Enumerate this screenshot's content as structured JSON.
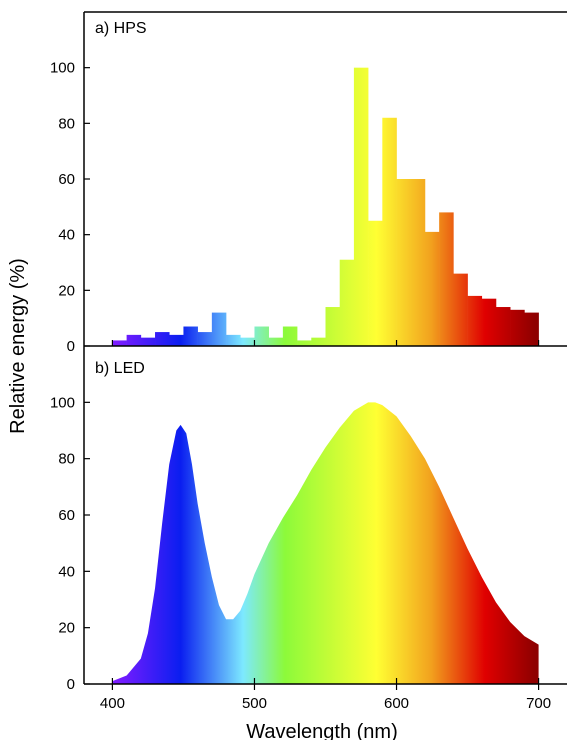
{
  "chart_data": [
    {
      "type": "bar",
      "panel_label": "a) HPS",
      "xlim": [
        380,
        720
      ],
      "ylim": [
        0,
        120
      ],
      "yticks": [
        0,
        20,
        40,
        60,
        80,
        100
      ],
      "bin_width": 10,
      "x": [
        400,
        410,
        420,
        430,
        440,
        450,
        460,
        470,
        480,
        490,
        500,
        510,
        520,
        530,
        540,
        550,
        560,
        570,
        580,
        590,
        600,
        610,
        620,
        630,
        640,
        650,
        660,
        670,
        680,
        690
      ],
      "values": [
        2,
        4,
        3,
        5,
        4,
        7,
        5,
        12,
        4,
        3,
        7,
        3,
        7,
        2,
        3,
        14,
        31,
        100,
        45,
        82,
        60,
        60,
        41,
        48,
        26,
        18,
        17,
        14,
        13,
        12
      ]
    },
    {
      "type": "area",
      "panel_label": "b) LED",
      "xlim": [
        380,
        720
      ],
      "ylim": [
        0,
        120
      ],
      "yticks": [
        0,
        20,
        40,
        60,
        80,
        100
      ],
      "x": [
        400,
        410,
        420,
        425,
        430,
        435,
        440,
        445,
        448,
        452,
        456,
        460,
        465,
        470,
        475,
        480,
        485,
        490,
        495,
        500,
        510,
        520,
        530,
        540,
        550,
        560,
        570,
        580,
        585,
        590,
        600,
        610,
        620,
        630,
        640,
        650,
        660,
        670,
        680,
        690,
        700
      ],
      "values": [
        1,
        3,
        9,
        18,
        34,
        57,
        78,
        90,
        92,
        89,
        78,
        64,
        50,
        38,
        28,
        23,
        23,
        26,
        32,
        39,
        50,
        59,
        67,
        76,
        84,
        91,
        97,
        100,
        100,
        99,
        95,
        88,
        80,
        70,
        59,
        48,
        38,
        29,
        22,
        17,
        14
      ]
    }
  ],
  "axes": {
    "xticks": [
      400,
      500,
      600,
      700
    ],
    "xlabel": "Wavelength (nm)",
    "ylabel": "Relative energy (%)"
  },
  "colors": {
    "violet": "#7a1cff",
    "blue": "#0a1ef0",
    "cyan": "#7de9ff",
    "green": "#8cfa3a",
    "yellow": "#ffff33",
    "orange": "#f2a21e",
    "red": "#e00000",
    "dark_red": "#8e0000"
  }
}
